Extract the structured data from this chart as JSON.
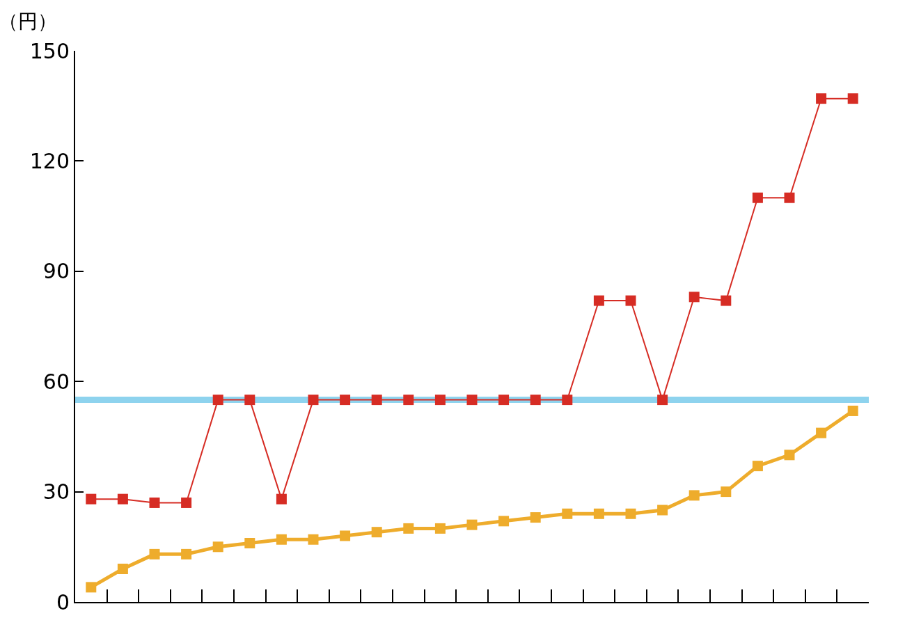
{
  "chart_data": {
    "type": "line",
    "ylabel": "（円）",
    "categories": [
      null,
      null,
      null,
      null,
      null,
      null,
      null,
      null,
      null,
      null,
      null,
      null,
      null,
      null,
      null,
      null,
      null,
      null,
      null,
      null,
      null,
      null,
      null,
      null,
      null
    ],
    "series": [
      {
        "color": "#d62c24",
        "values": [
          28,
          28,
          27,
          27,
          55,
          55,
          28,
          55,
          55,
          55,
          55,
          55,
          55,
          55,
          55,
          55,
          82,
          82,
          55,
          83,
          82,
          110,
          110,
          137,
          137
        ]
      },
      {
        "color": "#eeac2c",
        "values": [
          4,
          9,
          13,
          13,
          15,
          16,
          17,
          17,
          18,
          19,
          20,
          20,
          21,
          22,
          23,
          24,
          24,
          24,
          25,
          29,
          30,
          37,
          40,
          46,
          52
        ]
      }
    ],
    "ref_lines": [
      {
        "axis": "y",
        "value": 55,
        "color": "#8ed3ee"
      }
    ],
    "ylim": [
      0,
      150
    ],
    "yticks": [
      0,
      30,
      60,
      90,
      120,
      150
    ],
    "marker": "square",
    "line_style": "solid"
  }
}
